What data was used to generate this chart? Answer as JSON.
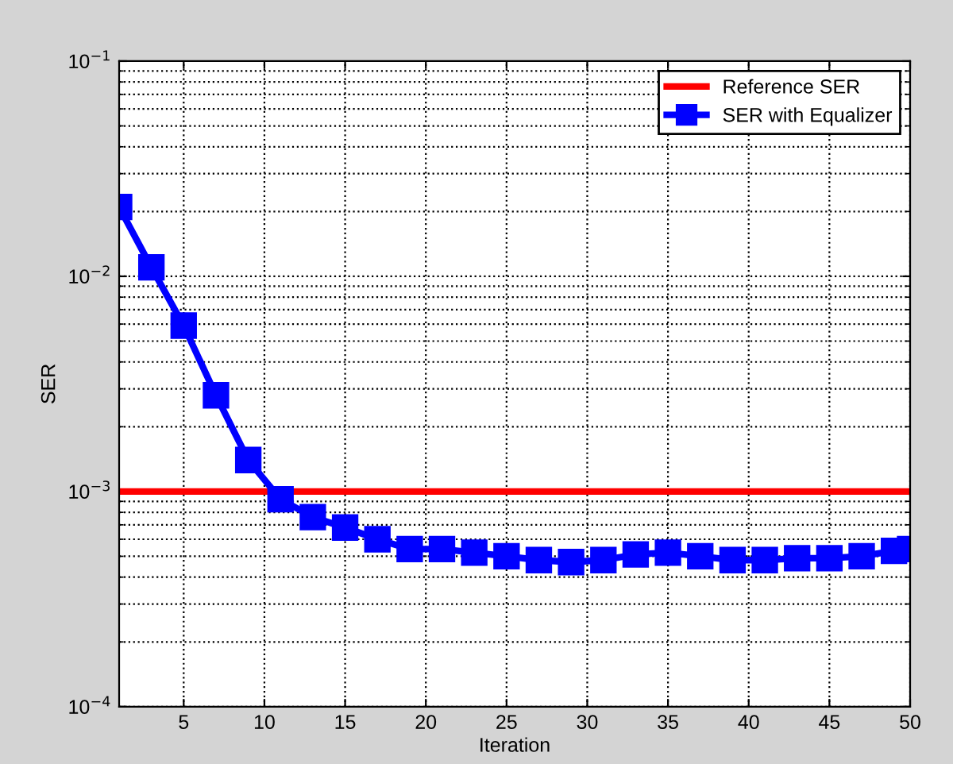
{
  "chart_data": {
    "type": "line",
    "xlabel": "Iteration",
    "ylabel": "SER",
    "log": "y",
    "xlim": [
      1,
      50
    ],
    "xticks": [
      5,
      10,
      15,
      20,
      25,
      30,
      35,
      40,
      45,
      50
    ],
    "ylim": [
      0.0001,
      0.1
    ],
    "yticks": [
      {
        "value": 0.0001,
        "label": "10$^{−4}$"
      },
      {
        "value": 0.001,
        "label": "10$^{−3}$"
      },
      {
        "value": 0.01,
        "label": "10$^{−2}$"
      },
      {
        "value": 0.1,
        "label": "10$^{−1}$"
      }
    ],
    "grid": true,
    "legend": "top right",
    "series": [
      {
        "name": "Reference SER",
        "color": "#ff0000",
        "x": [
          1,
          50
        ],
        "values": [
          0.001,
          0.001
        ],
        "marker": "none"
      },
      {
        "name": "SER with Equalizer",
        "color": "#0000ff",
        "marker": "square",
        "x": [
          1,
          3,
          5,
          7,
          9,
          11,
          13,
          15,
          17,
          19,
          21,
          23,
          25,
          27,
          29,
          31,
          33,
          35,
          37,
          39,
          41,
          43,
          45,
          47,
          49,
          50
        ],
        "values": [
          0.021,
          0.011,
          0.0059,
          0.0028,
          0.0014,
          0.00092,
          0.00076,
          0.00068,
          0.0006,
          0.00054,
          0.00054,
          0.00052,
          0.0005,
          0.00048,
          0.00047,
          0.00048,
          0.00051,
          0.00052,
          0.0005,
          0.00048,
          0.00048,
          0.00049,
          0.00049,
          0.0005,
          0.00053,
          0.00054
        ]
      }
    ]
  }
}
